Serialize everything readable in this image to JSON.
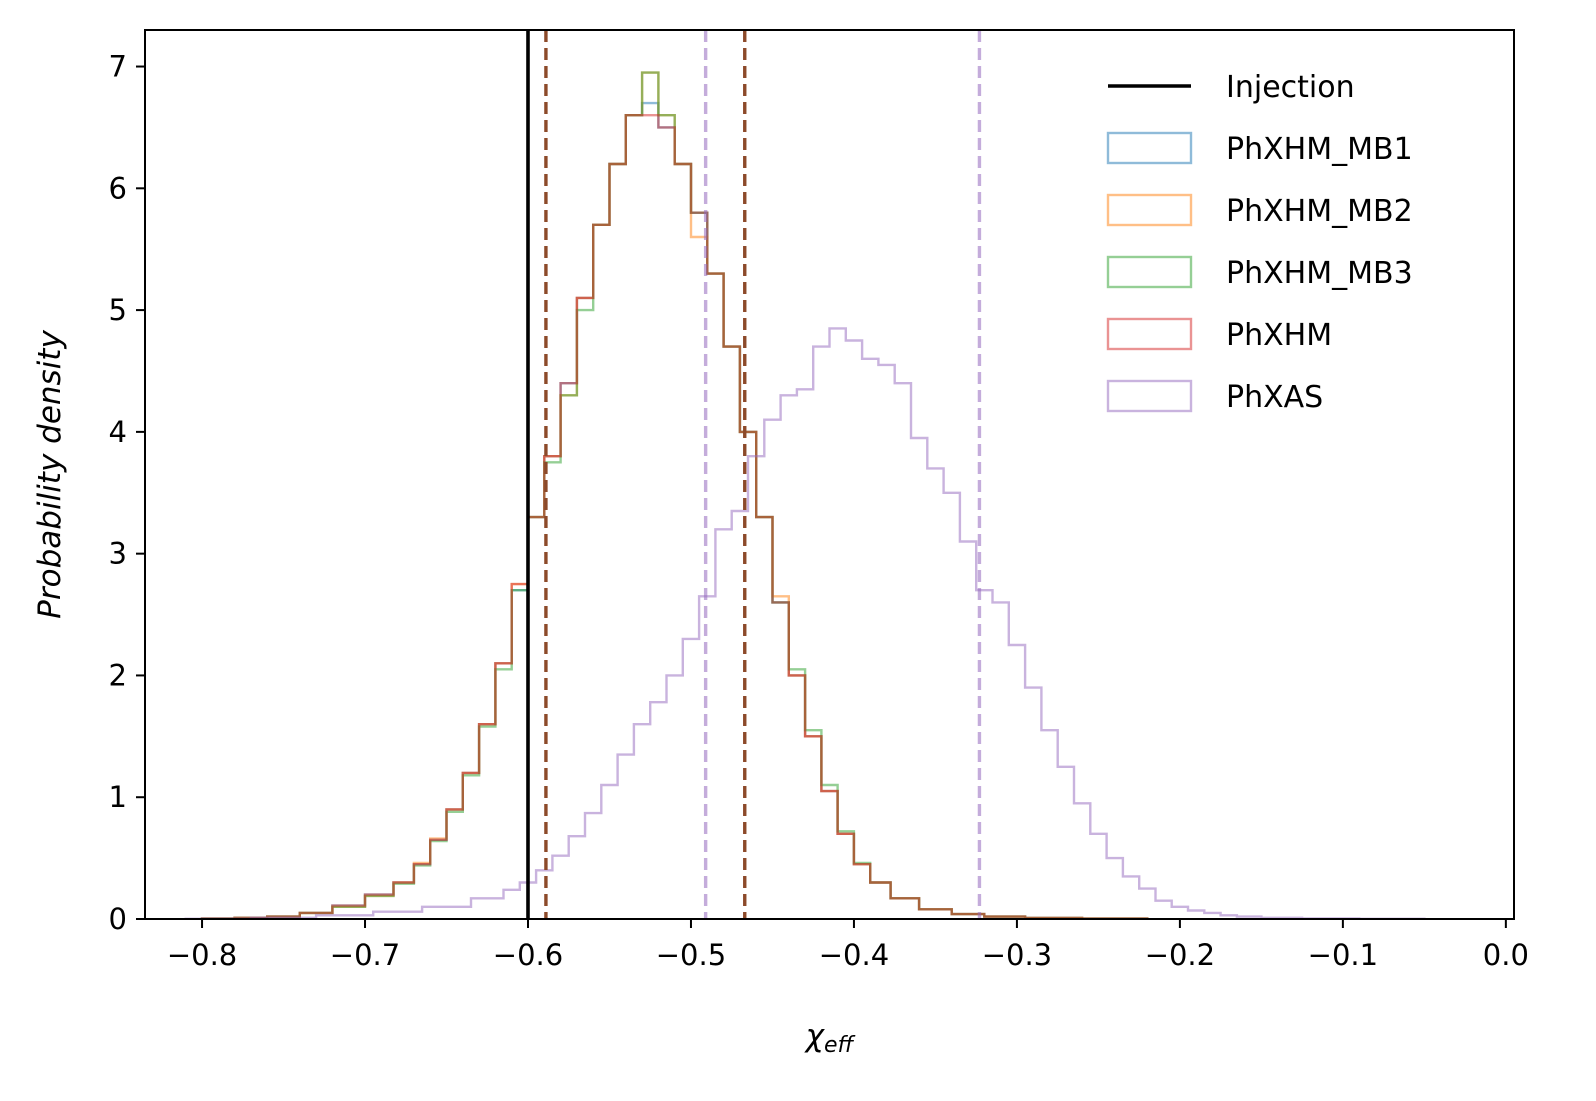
{
  "chart_data": {
    "type": "histogram",
    "xlabel": "χ",
    "xlabel_sub": "eff",
    "ylabel": "Probability density",
    "xlim": [
      -0.835,
      0.005
    ],
    "ylim": [
      0,
      7.3
    ],
    "x_ticks": [
      -0.8,
      -0.7,
      -0.6,
      -0.5,
      -0.4,
      -0.3,
      -0.2,
      -0.1,
      0.0
    ],
    "x_tick_labels": [
      "−0.8",
      "−0.7",
      "−0.6",
      "−0.5",
      "−0.4",
      "−0.3",
      "−0.2",
      "−0.1",
      "0.0"
    ],
    "y_ticks": [
      0,
      1,
      2,
      3,
      4,
      5,
      6,
      7
    ],
    "y_tick_labels": [
      "0",
      "1",
      "2",
      "3",
      "4",
      "5",
      "6",
      "7"
    ],
    "grid": false,
    "legend_position": "top-right",
    "injection": {
      "name": "Injection",
      "x": -0.6,
      "color": "#000000"
    },
    "series": [
      {
        "name": "PhXHM_MB1",
        "color": "#1f77b4",
        "points": [
          [
            -0.79,
            0.003
          ],
          [
            -0.77,
            0.01
          ],
          [
            -0.75,
            0.02
          ],
          [
            -0.73,
            0.05
          ],
          [
            -0.71,
            0.11
          ],
          [
            -0.69,
            0.2
          ],
          [
            -0.675,
            0.3
          ],
          [
            -0.665,
            0.45
          ],
          [
            -0.655,
            0.65
          ],
          [
            -0.645,
            0.9
          ],
          [
            -0.635,
            1.2
          ],
          [
            -0.625,
            1.6
          ],
          [
            -0.615,
            2.1
          ],
          [
            -0.605,
            2.7
          ],
          [
            -0.595,
            3.3
          ],
          [
            -0.585,
            3.8
          ],
          [
            -0.575,
            4.4
          ],
          [
            -0.565,
            5.1
          ],
          [
            -0.555,
            5.7
          ],
          [
            -0.545,
            6.2
          ],
          [
            -0.535,
            6.6
          ],
          [
            -0.525,
            6.7
          ],
          [
            -0.515,
            6.5
          ],
          [
            -0.505,
            6.2
          ],
          [
            -0.495,
            5.8
          ],
          [
            -0.485,
            5.3
          ],
          [
            -0.475,
            4.7
          ],
          [
            -0.465,
            4.0
          ],
          [
            -0.455,
            3.3
          ],
          [
            -0.445,
            2.6
          ],
          [
            -0.435,
            2.0
          ],
          [
            -0.425,
            1.5
          ],
          [
            -0.415,
            1.05
          ],
          [
            -0.405,
            0.7
          ],
          [
            -0.395,
            0.45
          ],
          [
            -0.385,
            0.3
          ],
          [
            -0.37,
            0.17
          ],
          [
            -0.35,
            0.08
          ],
          [
            -0.33,
            0.04
          ],
          [
            -0.31,
            0.02
          ],
          [
            -0.28,
            0.008
          ],
          [
            -0.24,
            0.003
          ]
        ]
      },
      {
        "name": "PhXHM_MB2",
        "color": "#ff7f0e",
        "points": [
          [
            -0.79,
            0.003
          ],
          [
            -0.77,
            0.01
          ],
          [
            -0.75,
            0.02
          ],
          [
            -0.73,
            0.05
          ],
          [
            -0.71,
            0.1
          ],
          [
            -0.69,
            0.19
          ],
          [
            -0.675,
            0.3
          ],
          [
            -0.665,
            0.46
          ],
          [
            -0.655,
            0.66
          ],
          [
            -0.645,
            0.9
          ],
          [
            -0.635,
            1.2
          ],
          [
            -0.625,
            1.6
          ],
          [
            -0.615,
            2.1
          ],
          [
            -0.605,
            2.75
          ],
          [
            -0.595,
            3.3
          ],
          [
            -0.585,
            3.8
          ],
          [
            -0.575,
            4.3
          ],
          [
            -0.565,
            5.1
          ],
          [
            -0.555,
            5.7
          ],
          [
            -0.545,
            6.2
          ],
          [
            -0.535,
            6.6
          ],
          [
            -0.525,
            6.95
          ],
          [
            -0.515,
            6.6
          ],
          [
            -0.505,
            6.2
          ],
          [
            -0.495,
            5.6
          ],
          [
            -0.485,
            5.3
          ],
          [
            -0.475,
            4.7
          ],
          [
            -0.465,
            4.0
          ],
          [
            -0.455,
            3.3
          ],
          [
            -0.445,
            2.65
          ],
          [
            -0.435,
            2.0
          ],
          [
            -0.425,
            1.5
          ],
          [
            -0.415,
            1.05
          ],
          [
            -0.405,
            0.7
          ],
          [
            -0.395,
            0.45
          ],
          [
            -0.385,
            0.3
          ],
          [
            -0.37,
            0.17
          ],
          [
            -0.35,
            0.08
          ],
          [
            -0.33,
            0.04
          ],
          [
            -0.31,
            0.02
          ],
          [
            -0.28,
            0.008
          ],
          [
            -0.24,
            0.003
          ]
        ]
      },
      {
        "name": "PhXHM_MB3",
        "color": "#2ca02c",
        "points": [
          [
            -0.79,
            0.003
          ],
          [
            -0.77,
            0.01
          ],
          [
            -0.75,
            0.02
          ],
          [
            -0.73,
            0.05
          ],
          [
            -0.71,
            0.1
          ],
          [
            -0.69,
            0.19
          ],
          [
            -0.675,
            0.29
          ],
          [
            -0.665,
            0.44
          ],
          [
            -0.655,
            0.64
          ],
          [
            -0.645,
            0.88
          ],
          [
            -0.635,
            1.18
          ],
          [
            -0.625,
            1.58
          ],
          [
            -0.615,
            2.05
          ],
          [
            -0.605,
            2.7
          ],
          [
            -0.595,
            3.3
          ],
          [
            -0.585,
            3.75
          ],
          [
            -0.575,
            4.3
          ],
          [
            -0.565,
            5.0
          ],
          [
            -0.555,
            5.7
          ],
          [
            -0.545,
            6.2
          ],
          [
            -0.535,
            6.6
          ],
          [
            -0.525,
            6.95
          ],
          [
            -0.515,
            6.6
          ],
          [
            -0.505,
            6.2
          ],
          [
            -0.495,
            5.8
          ],
          [
            -0.485,
            5.3
          ],
          [
            -0.475,
            4.7
          ],
          [
            -0.465,
            4.0
          ],
          [
            -0.455,
            3.3
          ],
          [
            -0.445,
            2.6
          ],
          [
            -0.435,
            2.05
          ],
          [
            -0.425,
            1.55
          ],
          [
            -0.415,
            1.1
          ],
          [
            -0.405,
            0.72
          ],
          [
            -0.395,
            0.46
          ],
          [
            -0.385,
            0.3
          ],
          [
            -0.37,
            0.17
          ],
          [
            -0.35,
            0.08
          ],
          [
            -0.33,
            0.04
          ],
          [
            -0.31,
            0.02
          ],
          [
            -0.28,
            0.008
          ],
          [
            -0.24,
            0.003
          ]
        ]
      },
      {
        "name": "PhXHM",
        "color": "#d62728",
        "points": [
          [
            -0.79,
            0.003
          ],
          [
            -0.77,
            0.01
          ],
          [
            -0.75,
            0.02
          ],
          [
            -0.73,
            0.05
          ],
          [
            -0.71,
            0.11
          ],
          [
            -0.69,
            0.2
          ],
          [
            -0.675,
            0.3
          ],
          [
            -0.665,
            0.45
          ],
          [
            -0.655,
            0.65
          ],
          [
            -0.645,
            0.9
          ],
          [
            -0.635,
            1.2
          ],
          [
            -0.625,
            1.6
          ],
          [
            -0.615,
            2.1
          ],
          [
            -0.605,
            2.75
          ],
          [
            -0.595,
            3.3
          ],
          [
            -0.585,
            3.8
          ],
          [
            -0.575,
            4.4
          ],
          [
            -0.565,
            5.1
          ],
          [
            -0.555,
            5.7
          ],
          [
            -0.545,
            6.2
          ],
          [
            -0.535,
            6.6
          ],
          [
            -0.525,
            6.6
          ],
          [
            -0.515,
            6.5
          ],
          [
            -0.505,
            6.2
          ],
          [
            -0.495,
            5.8
          ],
          [
            -0.485,
            5.3
          ],
          [
            -0.475,
            4.7
          ],
          [
            -0.465,
            4.0
          ],
          [
            -0.455,
            3.3
          ],
          [
            -0.445,
            2.6
          ],
          [
            -0.435,
            2.0
          ],
          [
            -0.425,
            1.5
          ],
          [
            -0.415,
            1.05
          ],
          [
            -0.405,
            0.7
          ],
          [
            -0.395,
            0.45
          ],
          [
            -0.385,
            0.3
          ],
          [
            -0.37,
            0.17
          ],
          [
            -0.35,
            0.08
          ],
          [
            -0.33,
            0.04
          ],
          [
            -0.31,
            0.02
          ],
          [
            -0.28,
            0.008
          ],
          [
            -0.24,
            0.003
          ]
        ]
      },
      {
        "name": "PhXAS",
        "color": "#9467bd",
        "points": [
          [
            -0.79,
            0.002
          ],
          [
            -0.75,
            0.01
          ],
          [
            -0.71,
            0.03
          ],
          [
            -0.68,
            0.06
          ],
          [
            -0.65,
            0.1
          ],
          [
            -0.62,
            0.17
          ],
          [
            -0.61,
            0.24
          ],
          [
            -0.6,
            0.3
          ],
          [
            -0.59,
            0.4
          ],
          [
            -0.58,
            0.52
          ],
          [
            -0.57,
            0.68
          ],
          [
            -0.56,
            0.87
          ],
          [
            -0.55,
            1.1
          ],
          [
            -0.54,
            1.35
          ],
          [
            -0.53,
            1.6
          ],
          [
            -0.52,
            1.78
          ],
          [
            -0.51,
            2.0
          ],
          [
            -0.5,
            2.3
          ],
          [
            -0.49,
            2.65
          ],
          [
            -0.48,
            3.2
          ],
          [
            -0.47,
            3.35
          ],
          [
            -0.46,
            3.8
          ],
          [
            -0.45,
            4.1
          ],
          [
            -0.44,
            4.3
          ],
          [
            -0.43,
            4.35
          ],
          [
            -0.42,
            4.7
          ],
          [
            -0.41,
            4.85
          ],
          [
            -0.4,
            4.75
          ],
          [
            -0.39,
            4.6
          ],
          [
            -0.38,
            4.55
          ],
          [
            -0.37,
            4.4
          ],
          [
            -0.36,
            3.95
          ],
          [
            -0.35,
            3.7
          ],
          [
            -0.34,
            3.5
          ],
          [
            -0.33,
            3.1
          ],
          [
            -0.32,
            2.7
          ],
          [
            -0.31,
            2.6
          ],
          [
            -0.3,
            2.25
          ],
          [
            -0.29,
            1.9
          ],
          [
            -0.28,
            1.55
          ],
          [
            -0.27,
            1.25
          ],
          [
            -0.26,
            0.95
          ],
          [
            -0.25,
            0.7
          ],
          [
            -0.24,
            0.5
          ],
          [
            -0.23,
            0.35
          ],
          [
            -0.22,
            0.25
          ],
          [
            -0.21,
            0.15
          ],
          [
            -0.2,
            0.1
          ],
          [
            -0.19,
            0.07
          ],
          [
            -0.18,
            0.05
          ],
          [
            -0.17,
            0.03
          ],
          [
            -0.16,
            0.02
          ],
          [
            -0.14,
            0.01
          ],
          [
            -0.11,
            0.005
          ],
          [
            -0.07,
            0.002
          ]
        ]
      }
    ],
    "credible_interval_lines": [
      {
        "color": "#8c4a2a",
        "x": -0.589
      },
      {
        "color": "#8c4a2a",
        "x": -0.467
      },
      {
        "color": "#9467bd",
        "x": -0.491
      },
      {
        "color": "#9467bd",
        "x": -0.323
      }
    ]
  }
}
